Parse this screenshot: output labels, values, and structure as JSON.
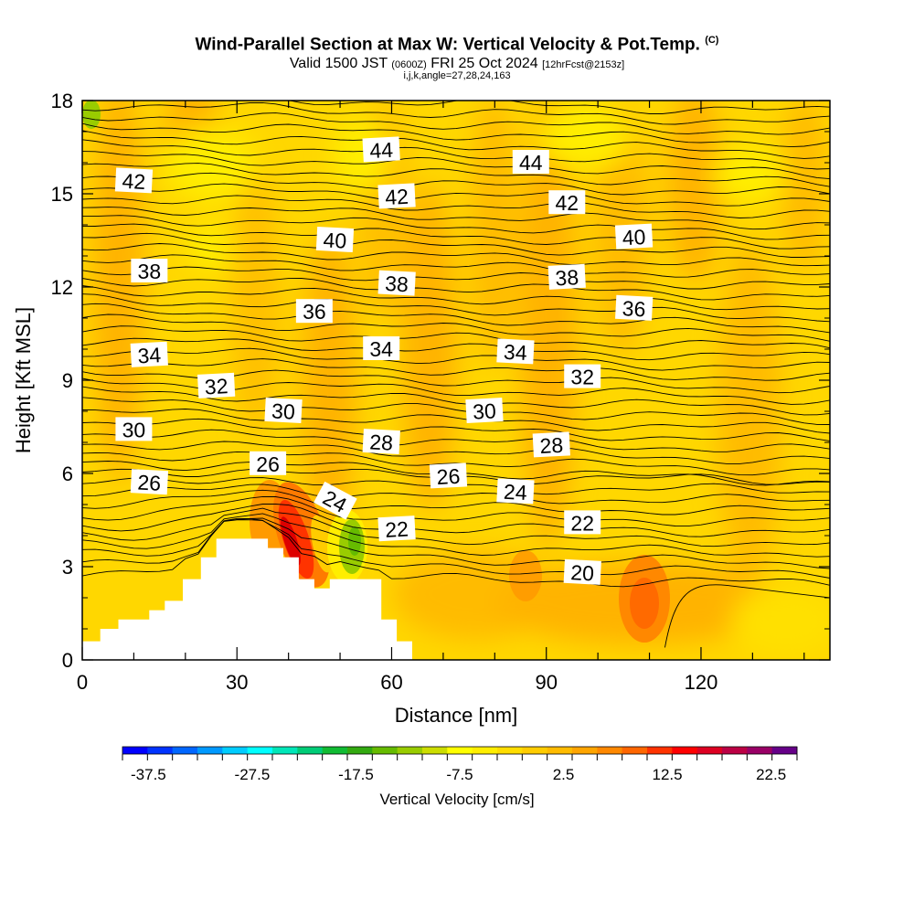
{
  "header": {
    "title": "Wind-Parallel Section at Max W: Vertical Velocity & Pot.Temp.",
    "copyright": "(C)",
    "valid_pre": "Valid 1500 JST",
    "valid_utc": "(0600Z)",
    "valid_date": "FRI 25 Oct 2024",
    "forecast": "[12hrFcst@2153z]",
    "indices": "i,j,k,angle=27,28,24,163"
  },
  "chart_data": {
    "type": "heatmap",
    "xlabel": "Distance [nm]",
    "ylabel": "Height [Kft MSL]",
    "xlim": [
      0,
      145
    ],
    "ylim": [
      0,
      18
    ],
    "x_ticks": [
      0,
      30,
      60,
      90,
      120
    ],
    "y_ticks": [
      0,
      3,
      6,
      9,
      12,
      15,
      18
    ],
    "colorbar": {
      "label": "Vertical Velocity [cm/s]",
      "min": -40,
      "max": 25,
      "step": 2.5,
      "tick_values": [
        -37.5,
        -27.5,
        -17.5,
        -7.5,
        2.5,
        12.5,
        22.5
      ],
      "tick_labels": [
        "-37.5",
        "-27.5",
        "-17.5",
        "-7.5",
        "2.5",
        "12.5",
        "22.5"
      ],
      "colors": [
        "#0000ff",
        "#0033ff",
        "#0066ff",
        "#0099ff",
        "#00ccff",
        "#00ffff",
        "#00e6b8",
        "#00cc77",
        "#11bb33",
        "#33aa11",
        "#66bb00",
        "#99cc00",
        "#ccdd00",
        "#ffff00",
        "#ffee00",
        "#ffdd00",
        "#ffcc00",
        "#ffbb00",
        "#ffa500",
        "#ff8800",
        "#ff6600",
        "#ff3300",
        "#ff0000",
        "#dd0022",
        "#bb0044",
        "#990066",
        "#660088"
      ]
    },
    "theta_labels": [
      {
        "text": "44",
        "x": 58,
        "y": 16.4
      },
      {
        "text": "44",
        "x": 87,
        "y": 16.0
      },
      {
        "text": "42",
        "x": 10,
        "y": 15.4
      },
      {
        "text": "42",
        "x": 61,
        "y": 14.9
      },
      {
        "text": "42",
        "x": 94,
        "y": 14.7
      },
      {
        "text": "40",
        "x": 49,
        "y": 13.5
      },
      {
        "text": "40",
        "x": 107,
        "y": 13.6
      },
      {
        "text": "38",
        "x": 13,
        "y": 12.5
      },
      {
        "text": "38",
        "x": 61,
        "y": 12.1
      },
      {
        "text": "38",
        "x": 94,
        "y": 12.3
      },
      {
        "text": "36",
        "x": 45,
        "y": 11.2
      },
      {
        "text": "36",
        "x": 107,
        "y": 11.3
      },
      {
        "text": "34",
        "x": 13,
        "y": 9.8
      },
      {
        "text": "34",
        "x": 58,
        "y": 10.0
      },
      {
        "text": "34",
        "x": 84,
        "y": 9.9
      },
      {
        "text": "32",
        "x": 26,
        "y": 8.8
      },
      {
        "text": "32",
        "x": 97,
        "y": 9.1
      },
      {
        "text": "30",
        "x": 39,
        "y": 8.0
      },
      {
        "text": "30",
        "x": 78,
        "y": 8.0
      },
      {
        "text": "30",
        "x": 10,
        "y": 7.4
      },
      {
        "text": "28",
        "x": 58,
        "y": 7.0
      },
      {
        "text": "28",
        "x": 91,
        "y": 6.9
      },
      {
        "text": "26",
        "x": 36,
        "y": 6.3
      },
      {
        "text": "26",
        "x": 13,
        "y": 5.7
      },
      {
        "text": "26",
        "x": 71,
        "y": 5.9
      },
      {
        "text": "24",
        "x": 49,
        "y": 5.1
      },
      {
        "text": "24",
        "x": 84,
        "y": 5.4
      },
      {
        "text": "22",
        "x": 61,
        "y": 4.2
      },
      {
        "text": "22",
        "x": 97,
        "y": 4.4
      },
      {
        "text": "20",
        "x": 97,
        "y": 2.8
      }
    ]
  }
}
